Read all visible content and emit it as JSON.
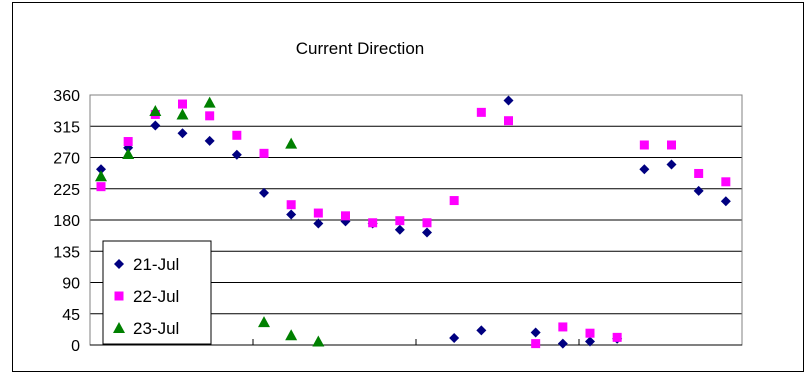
{
  "chart_data": {
    "type": "scatter",
    "title": "Current Direction",
    "ylim": [
      0,
      360
    ],
    "yticks": [
      0,
      45,
      90,
      135,
      180,
      225,
      270,
      315,
      360
    ],
    "grid": "horizontal",
    "legend": "bottom-left",
    "x": [
      1,
      2,
      3,
      4,
      5,
      6,
      7,
      8,
      9,
      10,
      11,
      12,
      13,
      14,
      15,
      16,
      17,
      18,
      19,
      20,
      21,
      22,
      23,
      24,
      25,
      26
    ],
    "series": [
      {
        "name": "21-Jul",
        "color": "#000080",
        "marker": "diamond",
        "values": [
          253,
          284,
          316,
          305,
          294,
          274,
          219,
          188,
          175,
          178,
          175,
          166,
          162,
          10,
          21,
          352,
          18,
          2,
          5,
          9,
          null,
          253,
          260,
          222,
          207
        ]
      },
      {
        "name": "22-Jul",
        "color": "#ff00ff",
        "marker": "square",
        "values": [
          228,
          293,
          332,
          347,
          330,
          302,
          276,
          202,
          190,
          186,
          176,
          179,
          176,
          208,
          335,
          323,
          2,
          26,
          17,
          11,
          null,
          288,
          288,
          247,
          235
        ]
      },
      {
        "name": "23-Jul",
        "color": "#008000",
        "marker": "triangle",
        "values": [
          243,
          275,
          337,
          332,
          349,
          33,
          14,
          290,
          5,
          null,
          null,
          null,
          null,
          null,
          null,
          null,
          null,
          null,
          null,
          null,
          null,
          null,
          null,
          null,
          null
        ]
      }
    ],
    "series_x": [
      [
        1,
        2,
        3,
        4,
        5,
        6,
        7,
        8,
        9,
        10,
        11,
        12,
        13,
        14,
        15,
        16,
        17,
        18,
        19,
        20,
        21,
        22,
        23,
        24,
        25
      ],
      [
        1,
        2,
        3,
        4,
        5,
        6,
        7,
        8,
        9,
        10,
        11,
        12,
        13,
        14,
        15,
        16,
        17,
        18,
        19,
        20,
        21,
        22,
        23,
        24,
        25
      ],
      [
        1,
        2,
        3,
        4,
        5,
        7,
        8,
        8,
        9
      ]
    ]
  }
}
